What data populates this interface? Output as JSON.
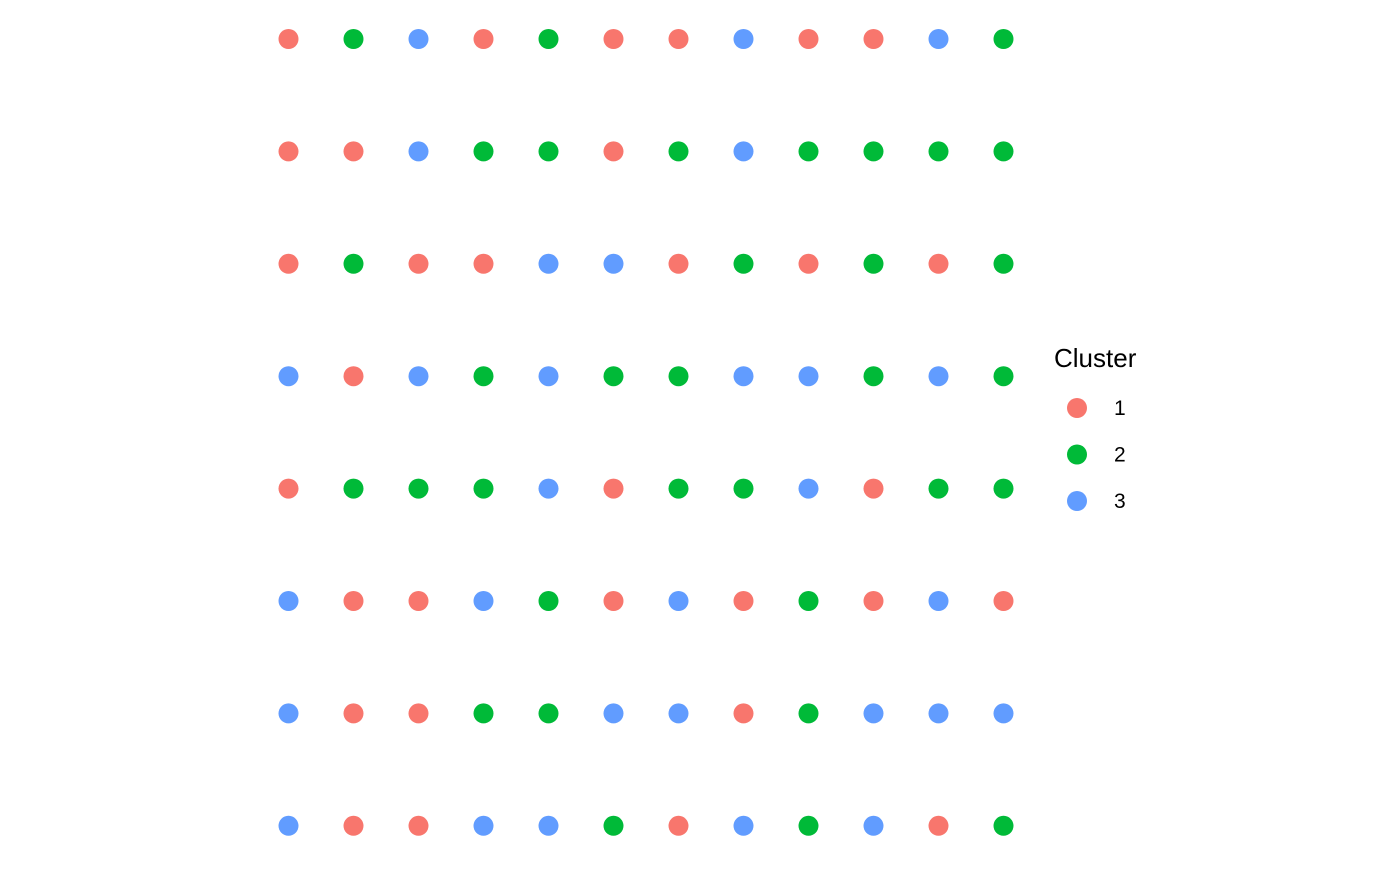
{
  "chart_data": {
    "type": "scatter",
    "grid": "off",
    "legend": {
      "title": "Cluster",
      "placement": "right",
      "items": [
        {
          "label": "1",
          "color": "#F8766D"
        },
        {
          "label": "2",
          "color": "#00BA38"
        },
        {
          "label": "3",
          "color": "#619CFF"
        }
      ]
    },
    "columns": 12,
    "rows": 8,
    "cluster_grid": [
      [
        1,
        2,
        3,
        1,
        2,
        1,
        1,
        3,
        1,
        1,
        3,
        2
      ],
      [
        1,
        1,
        3,
        2,
        2,
        1,
        2,
        3,
        2,
        2,
        2,
        2
      ],
      [
        1,
        2,
        1,
        1,
        3,
        3,
        1,
        2,
        1,
        2,
        1,
        2
      ],
      [
        3,
        1,
        3,
        2,
        3,
        2,
        2,
        3,
        3,
        2,
        3,
        2
      ],
      [
        1,
        2,
        2,
        2,
        3,
        1,
        2,
        2,
        3,
        1,
        2,
        2
      ],
      [
        3,
        1,
        1,
        3,
        2,
        1,
        3,
        1,
        2,
        1,
        3,
        1
      ],
      [
        3,
        1,
        1,
        2,
        2,
        3,
        3,
        1,
        2,
        3,
        3,
        3
      ],
      [
        3,
        1,
        1,
        3,
        3,
        2,
        1,
        3,
        2,
        3,
        1,
        2
      ]
    ]
  }
}
